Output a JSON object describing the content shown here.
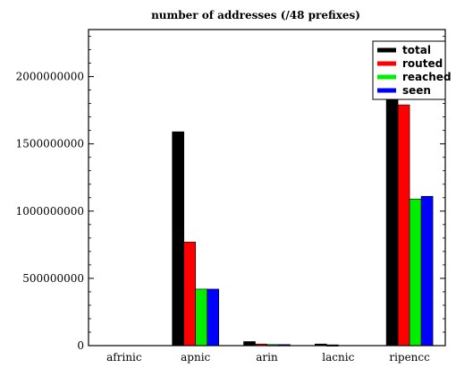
{
  "chart_data": {
    "type": "bar",
    "title": "number of addresses (/48 prefixes)",
    "xlabel": "",
    "ylabel": "",
    "categories": [
      "afrinic",
      "apnic",
      "arin",
      "lacnic",
      "ripencc"
    ],
    "ylim": [
      0,
      2350000000
    ],
    "yticks": [
      0,
      500000000,
      1000000000,
      1500000000,
      2000000000
    ],
    "ytick_labels": [
      "0",
      "500000000",
      "1000000000",
      "1500000000",
      "2000000000"
    ],
    "grid": false,
    "legend_position": "top-right",
    "series": [
      {
        "name": "total",
        "color": "#000000",
        "values": [
          0,
          1590000000,
          30000000,
          12000000,
          2140000000
        ]
      },
      {
        "name": "routed",
        "color": "#ff0000",
        "values": [
          0,
          770000000,
          12000000,
          6000000,
          1790000000
        ]
      },
      {
        "name": "reached",
        "color": "#00ee00",
        "values": [
          0,
          420000000,
          8000000,
          0,
          1090000000
        ]
      },
      {
        "name": "seen",
        "color": "#0000ff",
        "values": [
          0,
          420000000,
          8000000,
          0,
          1110000000
        ]
      }
    ]
  }
}
